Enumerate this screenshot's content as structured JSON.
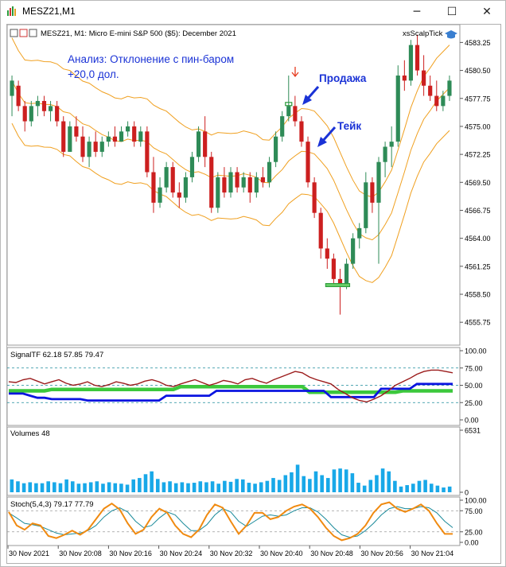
{
  "window": {
    "title": "MESZ21,M1",
    "minimize_glyph": "─",
    "maximize_glyph": "☐",
    "close_glyph": "✕"
  },
  "chart": {
    "header": "MESZ21, M1:  Micro E-mini S&P 500 ($5): December 2021",
    "indicator_name": "xsScalpTick",
    "annotation_analysis_line1": "Анализ: Отклонение с пин-баром",
    "annotation_analysis_line2": "+20,0 дол.",
    "annotation_sell": "Продажа",
    "annotation_take": "Тейк",
    "colors": {
      "bull": "#2e8b57",
      "bear": "#cc1f1f",
      "envelope": "#f0a020",
      "annotation": "#1a32d6",
      "signal_red": "#9b1b1b",
      "signal_blue": "#0a14e0",
      "signal_green": "#3cc83c",
      "volume": "#18a8e8",
      "stoch_main": "#f08a10",
      "stoch_signal": "#1a8a9a"
    }
  },
  "chart_data": [
    {
      "type": "candlestick",
      "title": "MESZ21, M1:  Micro E-mini S&P 500 ($5): December 2021",
      "ylim": [
        4553.5,
        4585.0
      ],
      "y_ticks": [
        "4583.25",
        "4580.50",
        "4577.75",
        "4575.00",
        "4572.25",
        "4569.50",
        "4566.75",
        "4564.00",
        "4561.25",
        "4558.50",
        "4555.75"
      ],
      "candles": [
        [
          4578.0,
          4580.0,
          4576.0,
          4579.5
        ],
        [
          4579.0,
          4579.5,
          4576.5,
          4577.0
        ],
        [
          4577.0,
          4577.5,
          4574.5,
          4575.5
        ],
        [
          4575.5,
          4577.5,
          4575.0,
          4577.0
        ],
        [
          4577.0,
          4578.0,
          4576.0,
          4577.5
        ],
        [
          4577.5,
          4578.0,
          4576.0,
          4576.5
        ],
        [
          4576.5,
          4577.5,
          4575.5,
          4577.0
        ],
        [
          4577.0,
          4577.5,
          4575.0,
          4575.5
        ],
        [
          4575.5,
          4576.0,
          4572.0,
          4572.5
        ],
        [
          4572.5,
          4575.5,
          4572.5,
          4575.0
        ],
        [
          4575.0,
          4576.0,
          4573.5,
          4574.0
        ],
        [
          4574.0,
          4575.0,
          4571.5,
          4572.0
        ],
        [
          4572.0,
          4574.0,
          4571.0,
          4573.5
        ],
        [
          4573.5,
          4574.5,
          4572.0,
          4572.5
        ],
        [
          4572.5,
          4574.0,
          4572.0,
          4573.5
        ],
        [
          4573.5,
          4574.5,
          4573.0,
          4574.0
        ],
        [
          4574.0,
          4575.0,
          4573.0,
          4573.5
        ],
        [
          4573.5,
          4575.0,
          4573.5,
          4574.5
        ],
        [
          4574.5,
          4575.5,
          4574.0,
          4575.0
        ],
        [
          4575.0,
          4575.5,
          4573.0,
          4573.5
        ],
        [
          4573.5,
          4575.0,
          4573.0,
          4574.5
        ],
        [
          4574.5,
          4575.0,
          4570.0,
          4570.5
        ],
        [
          4570.5,
          4572.0,
          4566.5,
          4567.5
        ],
        [
          4567.5,
          4570.0,
          4567.0,
          4569.0
        ],
        [
          4569.0,
          4571.5,
          4568.5,
          4571.0
        ],
        [
          4571.0,
          4571.5,
          4568.0,
          4568.5
        ],
        [
          4568.5,
          4569.5,
          4567.0,
          4568.0
        ],
        [
          4568.0,
          4570.5,
          4567.5,
          4570.0
        ],
        [
          4570.0,
          4572.5,
          4569.5,
          4572.0
        ],
        [
          4572.0,
          4575.0,
          4571.5,
          4574.5
        ],
        [
          4574.5,
          4576.0,
          4571.0,
          4572.0
        ],
        [
          4572.0,
          4572.5,
          4566.5,
          4567.0
        ],
        [
          4567.0,
          4570.5,
          4566.5,
          4570.0
        ],
        [
          4570.0,
          4571.0,
          4568.0,
          4568.5
        ],
        [
          4568.5,
          4571.0,
          4568.0,
          4570.5
        ],
        [
          4570.5,
          4571.0,
          4568.5,
          4569.0
        ],
        [
          4569.0,
          4570.5,
          4568.5,
          4570.0
        ],
        [
          4570.0,
          4570.5,
          4567.5,
          4568.5
        ],
        [
          4568.5,
          4570.5,
          4568.0,
          4570.0
        ],
        [
          4570.0,
          4571.0,
          4569.0,
          4569.5
        ],
        [
          4569.5,
          4572.0,
          4569.0,
          4571.5
        ],
        [
          4571.5,
          4574.5,
          4571.0,
          4574.0
        ],
        [
          4574.0,
          4576.5,
          4573.5,
          4576.0
        ],
        [
          4576.0,
          4580.0,
          4575.5,
          4577.0
        ],
        [
          4577.0,
          4578.0,
          4575.0,
          4575.5
        ],
        [
          4575.5,
          4576.0,
          4573.0,
          4573.5
        ],
        [
          4573.5,
          4574.0,
          4569.0,
          4569.5
        ],
        [
          4569.5,
          4570.0,
          4566.0,
          4566.5
        ],
        [
          4566.5,
          4567.0,
          4562.0,
          4563.0
        ],
        [
          4563.0,
          4564.0,
          4561.0,
          4562.0
        ],
        [
          4562.0,
          4562.5,
          4559.5,
          4560.0
        ],
        [
          4560.0,
          4561.0,
          4556.5,
          4559.5
        ],
        [
          4559.5,
          4562.0,
          4559.0,
          4561.5
        ],
        [
          4561.5,
          4564.5,
          4561.0,
          4564.0
        ],
        [
          4564.0,
          4565.5,
          4563.0,
          4565.0
        ],
        [
          4565.0,
          4570.5,
          4564.5,
          4569.5
        ],
        [
          4569.5,
          4570.0,
          4566.5,
          4567.5
        ],
        [
          4567.5,
          4572.0,
          4561.5,
          4571.5
        ],
        [
          4571.5,
          4573.5,
          4570.0,
          4573.0
        ],
        [
          4573.0,
          4575.0,
          4571.0,
          4573.5
        ],
        [
          4573.5,
          4581.0,
          4573.0,
          4580.0
        ],
        [
          4580.0,
          4581.5,
          4578.5,
          4579.5
        ],
        [
          4579.5,
          4583.5,
          4579.0,
          4583.0
        ],
        [
          4583.0,
          4584.0,
          4580.0,
          4580.5
        ],
        [
          4580.5,
          4582.0,
          4578.0,
          4579.0
        ],
        [
          4579.0,
          4580.0,
          4577.5,
          4578.0
        ],
        [
          4578.0,
          4579.5,
          4576.5,
          4577.0
        ],
        [
          4577.0,
          4578.5,
          4576.5,
          4578.0
        ],
        [
          4578.0,
          4580.0,
          4577.5,
          4579.5
        ]
      ],
      "sell_level": 4577.2,
      "take_level": 4559.4
    },
    {
      "type": "line",
      "title": "SignalTF 62.18 57.85 79.47",
      "ylim": [
        0,
        100
      ],
      "y_ticks": [
        "100.00",
        "75.00",
        "50.00",
        "25.00",
        "0.00"
      ],
      "dashed_levels": [
        75,
        50,
        25
      ],
      "series": [
        {
          "values": [
            55,
            54,
            58,
            60,
            56,
            52,
            55,
            58,
            53,
            50,
            52,
            55,
            50,
            48,
            51,
            55,
            53,
            50,
            52,
            56,
            58,
            55,
            50,
            48,
            52,
            55,
            58,
            54,
            50,
            53,
            57,
            55,
            52,
            58,
            60,
            56,
            53,
            58,
            62,
            66,
            70,
            68,
            62,
            58,
            55,
            52,
            44,
            38,
            32,
            28,
            26,
            30,
            35,
            42,
            50,
            55,
            60,
            66,
            70,
            72,
            72,
            70,
            68
          ]
        },
        {
          "values": [
            38,
            38,
            38,
            35,
            32,
            32,
            30,
            30,
            30,
            30,
            30,
            28,
            28,
            28,
            28,
            28,
            28,
            28,
            28,
            28,
            28,
            28,
            35,
            35,
            35,
            35,
            35,
            35,
            35,
            42,
            42,
            42,
            42,
            42,
            42,
            42,
            42,
            42,
            42,
            42,
            42,
            42,
            42,
            42,
            42,
            33,
            33,
            33,
            33,
            33,
            33,
            33,
            45,
            45,
            45,
            45,
            45,
            52,
            52,
            52,
            52,
            52,
            52
          ]
        },
        {
          "values": [
            42,
            42,
            42,
            42,
            42,
            42,
            44,
            44,
            44,
            44,
            44,
            44,
            44,
            44,
            44,
            44,
            44,
            44,
            44,
            44,
            44,
            44,
            44,
            44,
            48,
            48,
            48,
            48,
            48,
            48,
            48,
            48,
            48,
            48,
            48,
            48,
            48,
            48,
            48,
            48,
            48,
            48,
            40,
            40,
            40,
            40,
            40,
            40,
            40,
            40,
            40,
            40,
            40,
            40,
            40,
            42,
            42,
            42,
            42,
            42,
            42,
            42,
            42
          ]
        }
      ]
    },
    {
      "type": "bar",
      "title": "Volumes 48",
      "ylim": [
        0,
        6531
      ],
      "y_ticks": [
        "6531",
        "0"
      ],
      "values": [
        1350,
        1150,
        950,
        1050,
        950,
        950,
        1150,
        1050,
        950,
        1350,
        1150,
        900,
        950,
        1050,
        1150,
        900,
        1050,
        950,
        900,
        800,
        1350,
        1500,
        1900,
        2200,
        1400,
        1050,
        1150,
        950,
        1050,
        950,
        1000,
        1150,
        1050,
        1150,
        900,
        1200,
        1100,
        1400,
        1350,
        1000,
        900,
        1050,
        1200,
        1500,
        1300,
        1800,
        2100,
        2900,
        1700,
        1400,
        2200,
        1800,
        1500,
        2400,
        2500,
        2400,
        2000,
        1000,
        700,
        1300,
        1800,
        2500,
        2200,
        1200,
        600,
        750,
        900,
        1200,
        1300,
        900,
        700,
        500,
        600
      ]
    },
    {
      "type": "line",
      "title": "Stoch(5,4,3) 79.17 77.79",
      "ylim": [
        0,
        100
      ],
      "y_ticks": [
        "100.00",
        "75.00",
        "25.00",
        "0.00"
      ],
      "x_ticks": [
        "30 Nov 2021",
        "30 Nov 20:08",
        "30 Nov 20:16",
        "30 Nov 20:24",
        "30 Nov 20:32",
        "30 Nov 20:40",
        "30 Nov 20:48",
        "30 Nov 20:56",
        "30 Nov 21:04"
      ],
      "series": [
        {
          "values": [
            72,
            40,
            30,
            45,
            40,
            15,
            10,
            18,
            28,
            18,
            30,
            55,
            80,
            92,
            78,
            45,
            20,
            30,
            60,
            80,
            70,
            40,
            20,
            12,
            30,
            65,
            90,
            82,
            50,
            20,
            40,
            70,
            70,
            55,
            60,
            75,
            85,
            90,
            80,
            60,
            35,
            15,
            5,
            10,
            20,
            40,
            70,
            90,
            95,
            80,
            72,
            80,
            90,
            75,
            45,
            20,
            20
          ]
        },
        {
          "values": [
            70,
            58,
            45,
            42,
            38,
            30,
            22,
            18,
            20,
            22,
            28,
            40,
            60,
            75,
            82,
            72,
            50,
            35,
            40,
            58,
            72,
            65,
            45,
            28,
            28,
            42,
            65,
            80,
            72,
            50,
            38,
            50,
            62,
            65,
            62,
            65,
            75,
            82,
            82,
            72,
            55,
            35,
            18,
            12,
            15,
            28,
            45,
            65,
            80,
            85,
            80,
            80,
            85,
            82,
            70,
            50,
            35
          ]
        }
      ]
    }
  ]
}
